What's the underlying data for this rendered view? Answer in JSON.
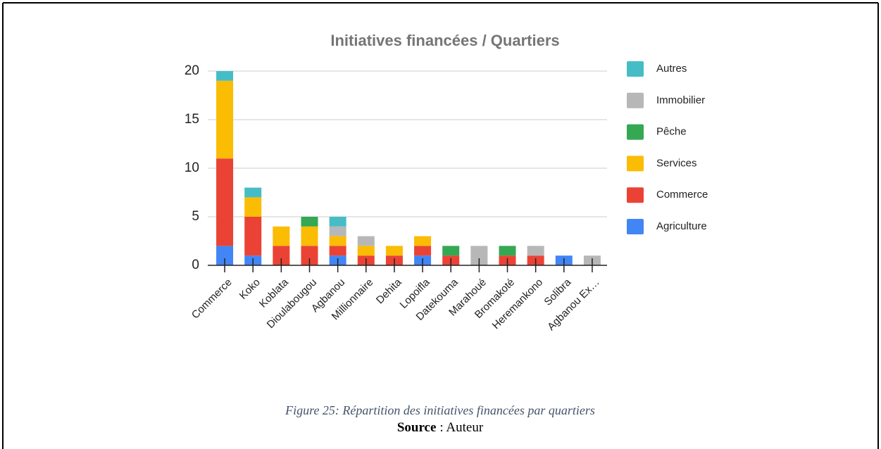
{
  "chart_data": {
    "type": "stacked_bar",
    "title": "Initiatives financées / Quartiers",
    "categories": [
      "Commerce",
      "Koko",
      "Koblata",
      "Dioulabougou",
      "Agbanou",
      "Millionnaire",
      "Dehita",
      "Lopoifla",
      "Datekouma",
      "Marahoué",
      "Bromakoté",
      "Heremankono",
      "Solibra",
      "Agbanou Ex…"
    ],
    "series": [
      {
        "name": "Agriculture",
        "color": "#4285f4",
        "values": [
          2,
          1,
          0,
          0,
          1,
          0,
          0,
          1,
          0,
          0,
          0,
          0,
          1,
          0
        ]
      },
      {
        "name": "Commerce",
        "color": "#ea4335",
        "values": [
          9,
          4,
          2,
          2,
          1,
          1,
          1,
          1,
          1,
          0,
          1,
          1,
          0,
          0
        ]
      },
      {
        "name": "Services",
        "color": "#fbbc04",
        "values": [
          8,
          2,
          2,
          2,
          1,
          1,
          1,
          1,
          0,
          0,
          0,
          0,
          0,
          0
        ]
      },
      {
        "name": "Pêche",
        "color": "#34a853",
        "values": [
          0,
          0,
          0,
          1,
          0,
          0,
          0,
          0,
          1,
          0,
          1,
          0,
          0,
          0
        ]
      },
      {
        "name": "Immobilier",
        "color": "#b7b7b7",
        "values": [
          0,
          0,
          0,
          0,
          1,
          1,
          0,
          0,
          0,
          2,
          0,
          1,
          0,
          1
        ]
      },
      {
        "name": "Autres",
        "color": "#46bdc6",
        "values": [
          1,
          1,
          0,
          0,
          1,
          0,
          0,
          0,
          0,
          0,
          0,
          0,
          0,
          0
        ]
      }
    ],
    "ylim": [
      0,
      20
    ],
    "yticks": [
      0,
      5,
      10,
      15,
      20
    ],
    "grid": true,
    "legend": "right"
  },
  "caption": "Figure 25: Répartition des initiatives financées par quartiers",
  "source_label": "Source",
  "source_text": ": Auteur"
}
